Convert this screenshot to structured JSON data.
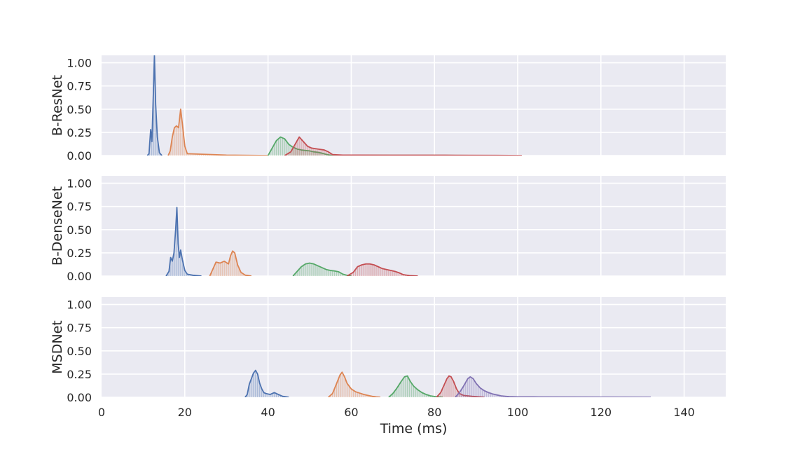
{
  "chart_data": {
    "type": "area",
    "layout": "three stacked subplots sharing the x axis",
    "xlabel": "Time (ms)",
    "xlim": [
      0,
      150
    ],
    "xticks": [
      0,
      20,
      40,
      60,
      80,
      100,
      120,
      140
    ],
    "ylim": [
      0,
      1.08
    ],
    "yticks": [
      0.0,
      0.25,
      0.5,
      0.75,
      1.0
    ],
    "ytick_labels": [
      "0.00",
      "0.25",
      "0.50",
      "0.75",
      "1.00"
    ],
    "grid": true,
    "style": "seaborn darkgrid",
    "series_colors": [
      "#4c72b0",
      "#dd8452",
      "#55a868",
      "#c44e52",
      "#8172b3"
    ],
    "panels": [
      {
        "ylabel": "B-ResNet",
        "series": [
          {
            "color": "#4c72b0",
            "points": [
              [
                11.0,
                0
              ],
              [
                11.4,
                0.02
              ],
              [
                11.8,
                0.28
              ],
              [
                12.1,
                0.15
              ],
              [
                12.4,
                0.6
              ],
              [
                12.7,
                1.08
              ],
              [
                13.0,
                0.55
              ],
              [
                13.4,
                0.2
              ],
              [
                13.9,
                0.03
              ],
              [
                14.5,
                0
              ]
            ]
          },
          {
            "color": "#dd8452",
            "points": [
              [
                16.0,
                0
              ],
              [
                16.5,
                0.05
              ],
              [
                17.0,
                0.2
              ],
              [
                17.5,
                0.3
              ],
              [
                18.0,
                0.32
              ],
              [
                18.5,
                0.3
              ],
              [
                19.0,
                0.5
              ],
              [
                19.4,
                0.35
              ],
              [
                20.0,
                0.1
              ],
              [
                20.6,
                0.02
              ],
              [
                30,
                0.005
              ],
              [
                40,
                0
              ]
            ]
          },
          {
            "color": "#55a868",
            "points": [
              [
                40.0,
                0
              ],
              [
                41.0,
                0.08
              ],
              [
                42.0,
                0.16
              ],
              [
                43.0,
                0.2
              ],
              [
                44.0,
                0.18
              ],
              [
                45.0,
                0.12
              ],
              [
                46.0,
                0.09
              ],
              [
                47.0,
                0.07
              ],
              [
                48.0,
                0.06
              ],
              [
                49.0,
                0.055
              ],
              [
                50.0,
                0.05
              ],
              [
                51.0,
                0.04
              ],
              [
                52.0,
                0.035
              ],
              [
                53.0,
                0.025
              ],
              [
                54.0,
                0.012
              ],
              [
                55.0,
                0.004
              ],
              [
                60.0,
                0.003
              ],
              [
                80.0,
                0.002
              ],
              [
                95.0,
                0
              ]
            ]
          },
          {
            "color": "#c44e52",
            "points": [
              [
                44.0,
                0
              ],
              [
                45.5,
                0.04
              ],
              [
                46.5,
                0.12
              ],
              [
                47.5,
                0.2
              ],
              [
                48.5,
                0.15
              ],
              [
                49.5,
                0.1
              ],
              [
                50.5,
                0.08
              ],
              [
                52.0,
                0.07
              ],
              [
                53.5,
                0.06
              ],
              [
                54.5,
                0.04
              ],
              [
                55.5,
                0.01
              ],
              [
                58.0,
                0.005
              ],
              [
                70.0,
                0.004
              ],
              [
                85.0,
                0.003
              ],
              [
                95.0,
                0.002
              ],
              [
                101.0,
                0
              ]
            ]
          }
        ]
      },
      {
        "ylabel": "B-DenseNet",
        "series": [
          {
            "color": "#4c72b0",
            "points": [
              [
                15.5,
                0
              ],
              [
                16.2,
                0.05
              ],
              [
                16.6,
                0.2
              ],
              [
                17.0,
                0.16
              ],
              [
                17.4,
                0.25
              ],
              [
                17.8,
                0.5
              ],
              [
                18.1,
                0.74
              ],
              [
                18.4,
                0.35
              ],
              [
                18.7,
                0.2
              ],
              [
                19.0,
                0.28
              ],
              [
                19.4,
                0.18
              ],
              [
                20.0,
                0.06
              ],
              [
                20.6,
                0.02
              ],
              [
                22.0,
                0.008
              ],
              [
                24.0,
                0
              ]
            ]
          },
          {
            "color": "#dd8452",
            "points": [
              [
                26.0,
                0
              ],
              [
                27.0,
                0.1
              ],
              [
                27.5,
                0.15
              ],
              [
                28.5,
                0.14
              ],
              [
                29.5,
                0.16
              ],
              [
                30.5,
                0.13
              ],
              [
                31.0,
                0.22
              ],
              [
                31.5,
                0.27
              ],
              [
                32.0,
                0.25
              ],
              [
                32.7,
                0.12
              ],
              [
                33.5,
                0.04
              ],
              [
                34.5,
                0.01
              ],
              [
                36.0,
                0
              ]
            ]
          },
          {
            "color": "#55a868",
            "points": [
              [
                46.0,
                0
              ],
              [
                47.0,
                0.05
              ],
              [
                48.0,
                0.1
              ],
              [
                49.0,
                0.13
              ],
              [
                50.0,
                0.14
              ],
              [
                51.0,
                0.13
              ],
              [
                52.0,
                0.11
              ],
              [
                53.0,
                0.09
              ],
              [
                54.0,
                0.07
              ],
              [
                55.0,
                0.06
              ],
              [
                56.0,
                0.055
              ],
              [
                57.0,
                0.045
              ],
              [
                58.0,
                0.02
              ],
              [
                59.0,
                0.008
              ],
              [
                60.0,
                0
              ]
            ]
          },
          {
            "color": "#c44e52",
            "points": [
              [
                59.0,
                0
              ],
              [
                60.5,
                0.04
              ],
              [
                61.5,
                0.1
              ],
              [
                62.5,
                0.12
              ],
              [
                63.5,
                0.13
              ],
              [
                64.5,
                0.13
              ],
              [
                65.5,
                0.12
              ],
              [
                66.5,
                0.1
              ],
              [
                67.5,
                0.08
              ],
              [
                68.5,
                0.07
              ],
              [
                69.5,
                0.06
              ],
              [
                70.5,
                0.05
              ],
              [
                71.5,
                0.035
              ],
              [
                72.5,
                0.015
              ],
              [
                74.0,
                0.005
              ],
              [
                76.0,
                0
              ]
            ]
          }
        ]
      },
      {
        "ylabel": "MSDNet",
        "series": [
          {
            "color": "#4c72b0",
            "points": [
              [
                34.5,
                0
              ],
              [
                35.0,
                0.03
              ],
              [
                35.5,
                0.14
              ],
              [
                36.0,
                0.2
              ],
              [
                36.5,
                0.26
              ],
              [
                37.0,
                0.29
              ],
              [
                37.5,
                0.25
              ],
              [
                38.0,
                0.15
              ],
              [
                38.5,
                0.09
              ],
              [
                39.0,
                0.05
              ],
              [
                39.5,
                0.04
              ],
              [
                40.5,
                0.03
              ],
              [
                41.5,
                0.05
              ],
              [
                42.5,
                0.03
              ],
              [
                43.5,
                0.01
              ],
              [
                45.0,
                0
              ]
            ]
          },
          {
            "color": "#dd8452",
            "points": [
              [
                54.5,
                0
              ],
              [
                55.5,
                0.04
              ],
              [
                56.5,
                0.15
              ],
              [
                57.3,
                0.24
              ],
              [
                57.8,
                0.27
              ],
              [
                58.4,
                0.22
              ],
              [
                59.0,
                0.15
              ],
              [
                60.0,
                0.09
              ],
              [
                61.0,
                0.06
              ],
              [
                62.0,
                0.045
              ],
              [
                63.0,
                0.03
              ],
              [
                64.0,
                0.02
              ],
              [
                65.0,
                0.01
              ],
              [
                66.0,
                0.004
              ],
              [
                67.0,
                0
              ]
            ]
          },
          {
            "color": "#55a868",
            "points": [
              [
                69.0,
                0
              ],
              [
                70.0,
                0.04
              ],
              [
                71.0,
                0.1
              ],
              [
                72.0,
                0.17
              ],
              [
                72.8,
                0.22
              ],
              [
                73.5,
                0.23
              ],
              [
                74.2,
                0.17
              ],
              [
                75.0,
                0.12
              ],
              [
                76.0,
                0.08
              ],
              [
                77.0,
                0.05
              ],
              [
                78.0,
                0.03
              ],
              [
                79.0,
                0.015
              ],
              [
                80.5,
                0.005
              ],
              [
                82.0,
                0
              ]
            ]
          },
          {
            "color": "#c44e52",
            "points": [
              [
                80.5,
                0
              ],
              [
                81.5,
                0.05
              ],
              [
                82.3,
                0.13
              ],
              [
                83.0,
                0.2
              ],
              [
                83.5,
                0.23
              ],
              [
                84.0,
                0.22
              ],
              [
                84.6,
                0.17
              ],
              [
                85.3,
                0.09
              ],
              [
                86.0,
                0.04
              ],
              [
                87.0,
                0.02
              ],
              [
                88.0,
                0.015
              ],
              [
                89.0,
                0.01
              ],
              [
                90.5,
                0.005
              ],
              [
                92.0,
                0
              ]
            ]
          },
          {
            "color": "#8172b3",
            "points": [
              [
                85.0,
                0
              ],
              [
                86.0,
                0.05
              ],
              [
                87.0,
                0.12
              ],
              [
                88.0,
                0.2
              ],
              [
                88.6,
                0.22
              ],
              [
                89.3,
                0.2
              ],
              [
                90.0,
                0.15
              ],
              [
                91.0,
                0.1
              ],
              [
                92.0,
                0.07
              ],
              [
                93.0,
                0.05
              ],
              [
                94.0,
                0.035
              ],
              [
                95.0,
                0.025
              ],
              [
                96.0,
                0.015
              ],
              [
                97.0,
                0.01
              ],
              [
                98.0,
                0.006
              ],
              [
                100.0,
                0.004
              ],
              [
                105.0,
                0.003
              ],
              [
                115.0,
                0.002
              ],
              [
                125.0,
                0.001
              ],
              [
                132.0,
                0
              ]
            ]
          }
        ]
      }
    ]
  }
}
